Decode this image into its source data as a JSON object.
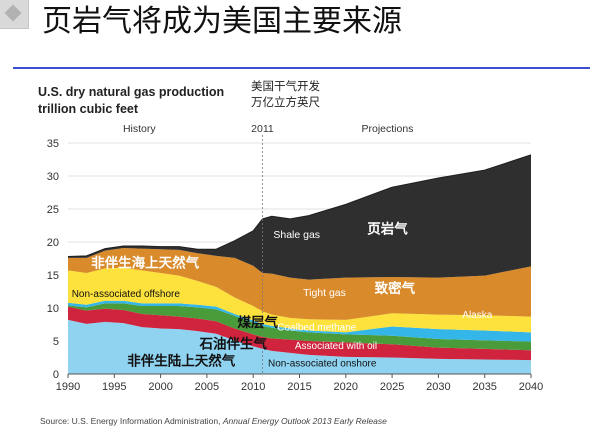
{
  "slide": {
    "title": "页岩气将成为美国主要来源"
  },
  "chart_data": {
    "type": "area",
    "stacked": true,
    "title": "U.S. dry natural gas production",
    "subtitle": "trillion cubic feet",
    "title_cn": "美国干气开发",
    "subtitle_cn": "万亿立方英尺",
    "xlabel": "",
    "ylabel": "",
    "x_range": [
      1990,
      2040
    ],
    "ylim": [
      0,
      35
    ],
    "x_ticks": [
      1990,
      1995,
      2000,
      2005,
      2010,
      2015,
      2020,
      2025,
      2030,
      2035,
      2040
    ],
    "y_ticks": [
      0,
      5,
      10,
      15,
      20,
      25,
      30,
      35
    ],
    "divider": {
      "x": 2011,
      "label": "2011",
      "left_label": "History",
      "right_label": "Projections"
    },
    "x": [
      1990,
      1992,
      1994,
      1996,
      1998,
      2000,
      2002,
      2004,
      2006,
      2008,
      2010,
      2011,
      2012,
      2014,
      2016,
      2020,
      2025,
      2030,
      2035,
      2040
    ],
    "series": [
      {
        "name": "Non-associated onshore",
        "name_cn": "非伴生陆上天然气",
        "color": "#8fd3f0",
        "values": [
          8.2,
          7.6,
          7.9,
          7.7,
          7.1,
          6.9,
          6.8,
          6.5,
          6.1,
          5.1,
          4.2,
          3.8,
          3.5,
          3.2,
          2.9,
          2.6,
          2.5,
          2.3,
          2.2,
          2.1
        ]
      },
      {
        "name": "Associated with oil",
        "name_cn": "石油伴生气",
        "color": "#d0243e",
        "values": [
          2.0,
          2.0,
          2.0,
          2.0,
          2.0,
          2.0,
          1.9,
          1.9,
          1.9,
          1.8,
          1.8,
          1.8,
          1.9,
          2.0,
          2.1,
          2.2,
          2.0,
          1.7,
          1.6,
          1.5
        ]
      },
      {
        "name": "Coalbed methane",
        "name_cn": "煤层气",
        "color": "#4a9b3a",
        "values": [
          0.2,
          0.5,
          0.8,
          1.0,
          1.2,
          1.4,
          1.6,
          1.7,
          1.8,
          1.9,
          1.8,
          1.7,
          1.6,
          1.4,
          1.3,
          1.2,
          1.3,
          1.3,
          1.3,
          1.3
        ]
      },
      {
        "name": "Alaska",
        "name_cn": "",
        "color": "#35b6e8",
        "values": [
          0.4,
          0.4,
          0.4,
          0.4,
          0.4,
          0.4,
          0.4,
          0.4,
          0.4,
          0.3,
          0.3,
          0.3,
          0.3,
          0.3,
          0.3,
          0.3,
          1.4,
          1.5,
          1.5,
          1.4
        ]
      },
      {
        "name": "Non-associated offshore",
        "name_cn": "",
        "color": "#fde23d",
        "values": [
          4.9,
          4.8,
          4.9,
          5.0,
          5.0,
          4.6,
          4.2,
          3.6,
          3.0,
          2.5,
          2.2,
          1.9,
          1.7,
          1.6,
          1.7,
          1.9,
          2.0,
          2.2,
          2.3,
          2.4
        ]
      },
      {
        "name": "Tight gas",
        "name_cn": "致密气",
        "color": "#d98a2b",
        "values": [
          1.9,
          2.3,
          2.7,
          3.0,
          3.3,
          3.6,
          3.9,
          4.2,
          4.7,
          6.0,
          6.1,
          5.8,
          6.2,
          6.1,
          6.0,
          6.4,
          5.5,
          5.6,
          6.0,
          7.6
        ]
      },
      {
        "name": "Shale gas",
        "name_cn": "页岩气",
        "color": "#2f2f2f",
        "values": [
          0.2,
          0.3,
          0.3,
          0.3,
          0.4,
          0.4,
          0.5,
          0.6,
          1.0,
          2.6,
          5.3,
          8.2,
          8.7,
          8.9,
          9.7,
          11.1,
          13.6,
          15.1,
          16.0,
          16.9
        ]
      }
    ],
    "annotations": [
      {
        "text": "非伴生海上天然气",
        "lang": "zh",
        "color": "#ffffff"
      },
      {
        "text": "Shale gas",
        "lang": "en",
        "color": "#ffffff"
      },
      {
        "text": "页岩气",
        "lang": "zh",
        "color": "#ffffff"
      },
      {
        "text": "Tight gas",
        "lang": "en",
        "color": "#ffffff"
      },
      {
        "text": "致密气",
        "lang": "zh",
        "color": "#ffffff"
      },
      {
        "text": "Non-associated offshore",
        "lang": "en",
        "color": "#111111"
      },
      {
        "text": "Alaska",
        "lang": "en",
        "color": "#ffffff"
      },
      {
        "text": "Coalbed methane",
        "lang": "en",
        "color": "#ffffff"
      },
      {
        "text": "煤层气",
        "lang": "zh",
        "color": "#111111"
      },
      {
        "text": "Associated with oil",
        "lang": "en",
        "color": "#ffffff"
      },
      {
        "text": "石油伴生气",
        "lang": "zh",
        "color": "#111111"
      },
      {
        "text": "Non-associated onshore",
        "lang": "en",
        "color": "#111111"
      },
      {
        "text": "非伴生陆上天然气",
        "lang": "zh",
        "color": "#111111"
      }
    ]
  },
  "source": {
    "prefix": "Source:",
    "agency": "U.S. Energy Information Administration,",
    "report": "Annual Energy Outlook 2013 Early Releas",
    "suffix": "e"
  },
  "colors": {
    "title_rule": "#3b4fd0",
    "axis": "#555555",
    "grid": "#d9d9d9",
    "divider": "#777777"
  }
}
